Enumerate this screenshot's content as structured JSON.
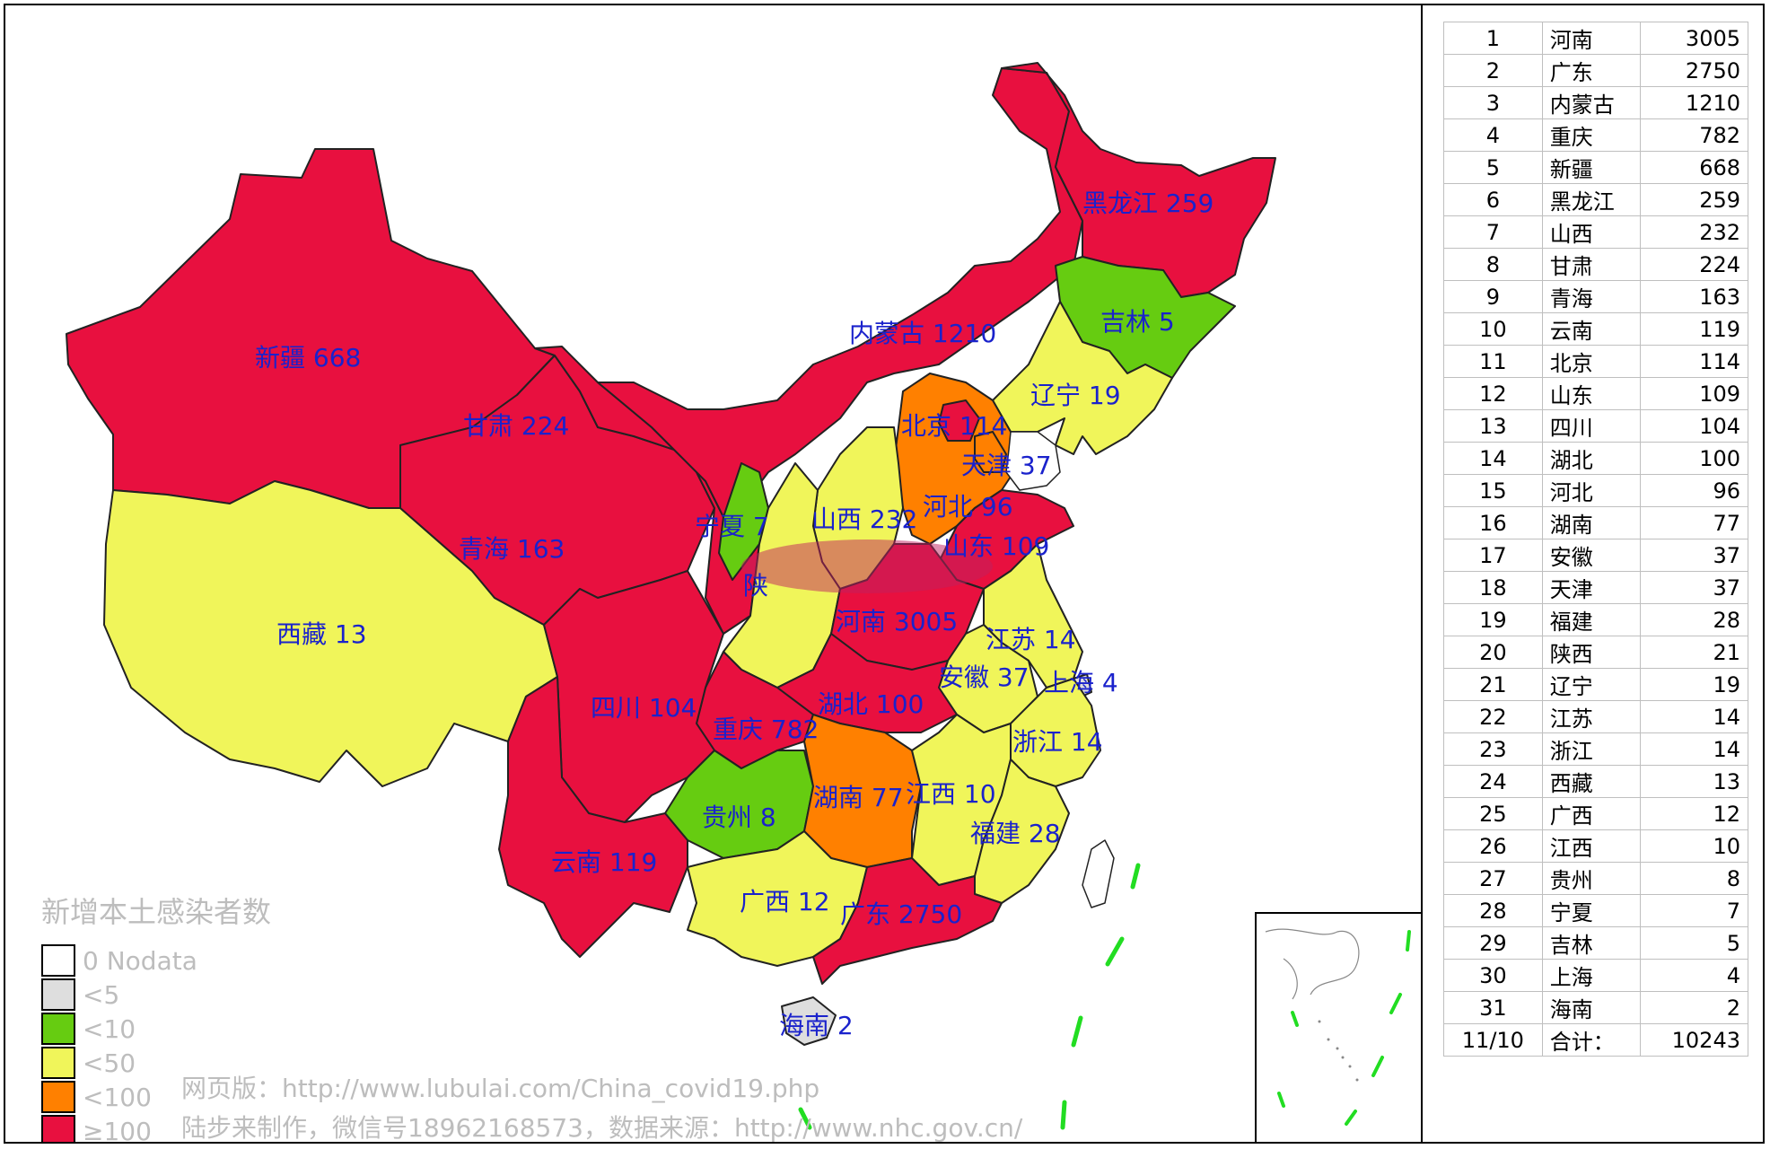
{
  "ranking": [
    {
      "rank": "1",
      "name": "河南",
      "value": "3005"
    },
    {
      "rank": "2",
      "name": "广东",
      "value": "2750"
    },
    {
      "rank": "3",
      "name": "内蒙古",
      "value": "1210"
    },
    {
      "rank": "4",
      "name": "重庆",
      "value": "782"
    },
    {
      "rank": "5",
      "name": "新疆",
      "value": "668"
    },
    {
      "rank": "6",
      "name": "黑龙江",
      "value": "259"
    },
    {
      "rank": "7",
      "name": "山西",
      "value": "232"
    },
    {
      "rank": "8",
      "name": "甘肃",
      "value": "224"
    },
    {
      "rank": "9",
      "name": "青海",
      "value": "163"
    },
    {
      "rank": "10",
      "name": "云南",
      "value": "119"
    },
    {
      "rank": "11",
      "name": "北京",
      "value": "114"
    },
    {
      "rank": "12",
      "name": "山东",
      "value": "109"
    },
    {
      "rank": "13",
      "name": "四川",
      "value": "104"
    },
    {
      "rank": "14",
      "name": "湖北",
      "value": "100"
    },
    {
      "rank": "15",
      "name": "河北",
      "value": "96"
    },
    {
      "rank": "16",
      "name": "湖南",
      "value": "77"
    },
    {
      "rank": "17",
      "name": "安徽",
      "value": "37"
    },
    {
      "rank": "18",
      "name": "天津",
      "value": "37"
    },
    {
      "rank": "19",
      "name": "福建",
      "value": "28"
    },
    {
      "rank": "20",
      "name": "陕西",
      "value": "21"
    },
    {
      "rank": "21",
      "name": "辽宁",
      "value": "19"
    },
    {
      "rank": "22",
      "name": "江苏",
      "value": "14"
    },
    {
      "rank": "23",
      "name": "浙江",
      "value": "14"
    },
    {
      "rank": "24",
      "name": "西藏",
      "value": "13"
    },
    {
      "rank": "25",
      "name": "广西",
      "value": "12"
    },
    {
      "rank": "26",
      "name": "江西",
      "value": "10"
    },
    {
      "rank": "27",
      "name": "贵州",
      "value": "8"
    },
    {
      "rank": "28",
      "name": "宁夏",
      "value": "7"
    },
    {
      "rank": "29",
      "name": "吉林",
      "value": "5"
    },
    {
      "rank": "30",
      "name": "上海",
      "value": "4"
    },
    {
      "rank": "31",
      "name": "海南",
      "value": "2"
    }
  ],
  "total": {
    "date": "11/10",
    "label": "合计：",
    "value": "10243"
  },
  "legend": {
    "title": "新增本土感染者数",
    "items": [
      {
        "label": "0 Nodata",
        "color": "#ffffff"
      },
      {
        "label": "<5",
        "color": "#dedede"
      },
      {
        "label": "<10",
        "color": "#66cc11"
      },
      {
        "label": "<50",
        "color": "#f0f55a"
      },
      {
        "label": "<100",
        "color": "#ff8000"
      },
      {
        "label": "≥100",
        "color": "#e8103f"
      }
    ]
  },
  "credits": {
    "line1": "网页版：http://www.lubulai.com/China_covid19.php",
    "line2": "陆步来制作，微信号18962168573，数据来源：http://www.nhc.gov.cn/"
  },
  "map_labels": {
    "xinjiang": "新疆 668",
    "xizang": "西藏 13",
    "qinghai": "青海 163",
    "gansu": "甘肃 224",
    "neimenggu": "内蒙古 1210",
    "heilongjiang": "黑龙江 259",
    "jilin": "吉林 5",
    "liaoning": "辽宁 19",
    "beijing": "北京 114",
    "tianjin": "天津 37",
    "hebei": "河北 96",
    "shanxi": "山西 232",
    "shandong": "山东 109",
    "ningxia": "宁夏 7",
    "shaanxi": "陕",
    "henan": "河南 3005",
    "jiangsu": "江苏 14",
    "anhui": "安徽 37",
    "shanghai": "上海 4",
    "sichuan": "四川 104",
    "hubei": "湖北 100",
    "chongqing": "重庆 782",
    "zhejiang": "浙江 14",
    "guizhou": "贵州 8",
    "hunan": "湖南 77",
    "jiangxi": "江西 10",
    "fujian": "福建 28",
    "yunnan": "云南 119",
    "guangxi": "广西 12",
    "guangdong": "广东 2750",
    "hainan": "海南 2"
  },
  "colors": {
    "ge100": "#e8103f",
    "lt100": "#ff8000",
    "lt50": "#f0f55a",
    "lt10": "#66cc11",
    "lt5": "#dedede",
    "label": "#1a22cc",
    "border": "#222222",
    "sea_line": "#22dd22"
  }
}
